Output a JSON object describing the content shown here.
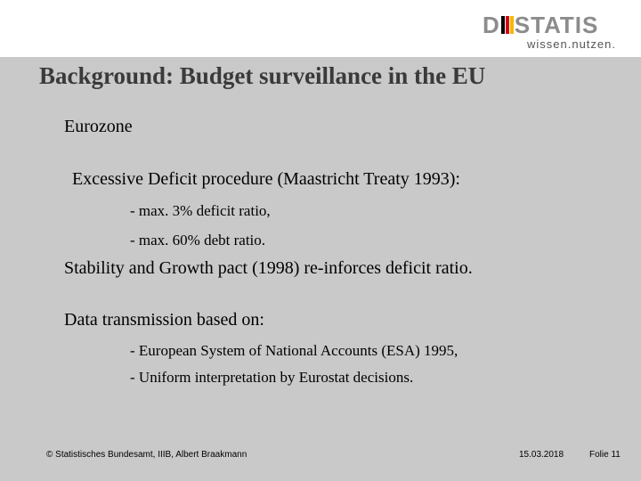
{
  "header": {
    "logo": {
      "word_left": "D",
      "word_right": "STATIS",
      "tagline": "wissen.nutzen."
    }
  },
  "slide": {
    "title": "Background: Budget surveillance in the EU",
    "lines": [
      "Eurozone",
      "Excessive Deficit procedure (Maastricht Treaty 1993):",
      "- max. 3% deficit ratio,",
      "- max. 60%  debt ratio.",
      "Stability and Growth pact (1998) re-inforces deficit ratio.",
      "Data transmission based on:",
      "- European System of National Accounts (ESA) 1995,",
      "- Uniform interpretation by Eurostat decisions."
    ]
  },
  "footer": {
    "copyright": "© Statistisches Bundesamt, IIIB, Albert Braakmann",
    "date": "15.03.2018",
    "page": "Folie 11"
  },
  "colors": {
    "slide_background": "#c9c9c9",
    "title_text": "#3a3a3a",
    "logo_grey": "#8c8c8c",
    "logo_bar_black": "#000000",
    "logo_bar_red": "#d7000f",
    "logo_bar_gold": "#f5b800"
  }
}
